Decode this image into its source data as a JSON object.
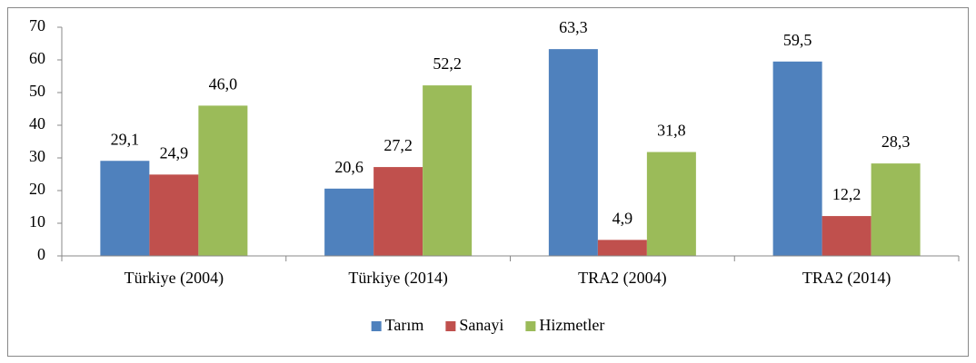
{
  "chart_data": {
    "type": "bar",
    "categories": [
      "Türkiye (2004)",
      "Türkiye (2014)",
      "TRA2 (2004)",
      "TRA2 (2014)"
    ],
    "series": [
      {
        "name": "Tarım",
        "color": "#4f81bd",
        "values": [
          29.1,
          20.6,
          63.3,
          59.5
        ],
        "value_labels": [
          "29,1",
          "20,6",
          "63,3",
          "59,5"
        ]
      },
      {
        "name": "Sanayi",
        "color": "#c0504d",
        "values": [
          24.9,
          27.2,
          4.9,
          12.2
        ],
        "value_labels": [
          "24,9",
          "27,2",
          "4,9",
          "12,2"
        ]
      },
      {
        "name": "Hizmetler",
        "color": "#9bbb59",
        "values": [
          46.0,
          52.2,
          31.8,
          28.3
        ],
        "value_labels": [
          "46,0",
          "52,2",
          "31,8",
          "28,3"
        ]
      }
    ],
    "ylim": [
      0,
      70
    ],
    "yticks": [
      0,
      10,
      20,
      30,
      40,
      50,
      60,
      70
    ],
    "grid": false,
    "legend": "bottom"
  }
}
